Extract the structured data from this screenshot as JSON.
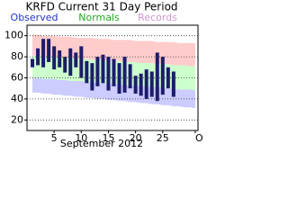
{
  "chart_data": {
    "type": "range-bar",
    "title": "KRFD Current 31 Day Period",
    "x_label": "September 2012",
    "x": [
      1,
      2,
      3,
      4,
      5,
      6,
      7,
      8,
      9,
      10,
      11,
      12,
      13,
      14,
      15,
      16,
      17,
      18,
      19,
      20,
      21,
      22,
      23,
      24,
      25,
      26,
      27,
      28,
      29,
      30,
      31
    ],
    "xlim": [
      0,
      31.5
    ],
    "xticks": [
      5,
      10,
      15,
      20,
      25,
      {
        "value": 31,
        "label": "Oc"
      }
    ],
    "ylim": [
      10,
      110
    ],
    "yticks": [
      20,
      40,
      60,
      80,
      100
    ],
    "grid": true,
    "series": [
      {
        "name": "Observed",
        "color": "#1c1c6c",
        "legend_color": "#2233cc",
        "high": [
          78,
          88,
          97,
          97,
          90,
          86,
          80,
          88,
          84,
          90,
          76,
          74,
          80,
          82,
          80,
          78,
          74,
          80,
          73,
          62,
          64,
          68,
          66,
          84,
          80,
          70,
          66,
          null,
          null,
          null,
          null
        ],
        "low": [
          70,
          72,
          70,
          75,
          68,
          70,
          65,
          62,
          70,
          60,
          55,
          48,
          52,
          55,
          48,
          52,
          45,
          46,
          50,
          45,
          43,
          40,
          42,
          38,
          44,
          50,
          42,
          null,
          null,
          null,
          null
        ]
      },
      {
        "name": "Normals",
        "color": "#ccffcc",
        "legend_color": "#22aa22",
        "high": [
          81,
          81,
          80,
          80,
          80,
          79,
          79,
          79,
          78,
          78,
          78,
          77,
          77,
          77,
          76,
          76,
          76,
          75,
          75,
          75,
          74,
          74,
          74,
          73,
          73,
          73,
          72,
          72,
          72,
          71,
          71
        ],
        "low": [
          60,
          60,
          59,
          59,
          59,
          58,
          58,
          57,
          57,
          57,
          56,
          56,
          55,
          55,
          55,
          54,
          54,
          53,
          53,
          53,
          52,
          52,
          51,
          51,
          51,
          50,
          50,
          49,
          49,
          49,
          48
        ]
      },
      {
        "name": "Records",
        "color": "#ffcccc",
        "low_color": "#ccccff",
        "legend_color": "#cc99cc",
        "high": [
          101,
          101,
          100,
          100,
          100,
          99,
          99,
          99,
          98,
          98,
          98,
          98,
          97,
          97,
          97,
          96,
          96,
          96,
          96,
          95,
          95,
          95,
          95,
          94,
          94,
          94,
          94,
          93,
          93,
          93,
          93
        ],
        "low": [
          46,
          46,
          45,
          45,
          44,
          44,
          43,
          43,
          42,
          42,
          41,
          41,
          40,
          40,
          39,
          39,
          38,
          38,
          37,
          37,
          36,
          36,
          35,
          35,
          34,
          34,
          33,
          33,
          32,
          32,
          31
        ]
      }
    ]
  }
}
